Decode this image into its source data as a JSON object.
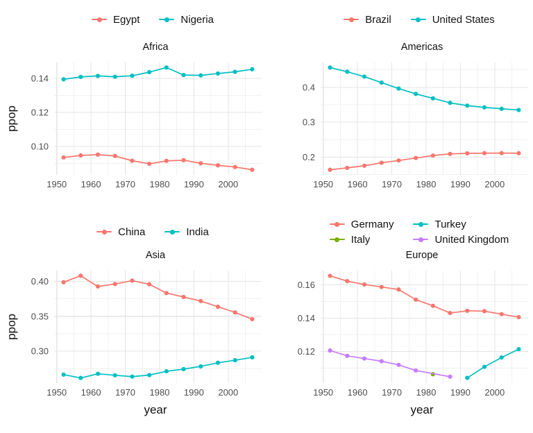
{
  "figure": {
    "background": "#ffffff",
    "grid_major_color": "#e4e4e4",
    "grid_minor_color": "#f0f0f0",
    "tick_text_color": "#4d4d4d",
    "text_color": "#111111"
  },
  "chart_data": [
    {
      "type": "line",
      "title": "Africa",
      "xlabel": "",
      "ylabel": "ppop",
      "legend_position": "top",
      "legend_rows": 1,
      "grid": "on",
      "xlim": [
        1949.25,
        2009.75
      ],
      "ylim": [
        0.0833,
        0.1493
      ],
      "x_ticks": {
        "values": [
          1950,
          1960,
          1970,
          1980,
          1990,
          2000
        ],
        "labels": [
          "1950",
          "1960",
          "1970",
          "1980",
          "1990",
          "2000"
        ]
      },
      "y_ticks": {
        "values": [
          0.1,
          0.12,
          0.14
        ],
        "labels": [
          "0.10",
          "0.12",
          "0.14"
        ]
      },
      "x_minor": [
        1955,
        1965,
        1975,
        1985,
        1995,
        2005
      ],
      "y_minor": [
        0.09,
        0.11,
        0.13
      ],
      "series": [
        {
          "name": "Egypt",
          "color": "#F8766D",
          "x": [
            1952,
            1957,
            1962,
            1967,
            1972,
            1977,
            1982,
            1987,
            1992,
            1997,
            2002,
            2007
          ],
          "values": [
            0.0935,
            0.0947,
            0.0952,
            0.0944,
            0.0916,
            0.0898,
            0.0915,
            0.0919,
            0.0901,
            0.0889,
            0.0879,
            0.0863
          ]
        },
        {
          "name": "Nigeria",
          "color": "#00BFC4",
          "x": [
            1952,
            1957,
            1962,
            1967,
            1972,
            1977,
            1982,
            1987,
            1992,
            1997,
            2002,
            2007
          ],
          "values": [
            0.1394,
            0.1408,
            0.1414,
            0.1409,
            0.1415,
            0.1436,
            0.1463,
            0.1419,
            0.1417,
            0.1428,
            0.1438,
            0.1453
          ]
        }
      ]
    },
    {
      "type": "line",
      "title": "Americas",
      "xlabel": "",
      "ylabel": "",
      "legend_position": "top",
      "legend_rows": 1,
      "grid": "on",
      "xlim": [
        1949.25,
        2009.75
      ],
      "ylim": [
        0.1494,
        0.4711
      ],
      "x_ticks": {
        "values": [
          1950,
          1960,
          1970,
          1980,
          1990,
          2000
        ],
        "labels": [
          "1950",
          "1960",
          "1970",
          "1980",
          "1990",
          "2000"
        ]
      },
      "y_ticks": {
        "values": [
          0.2,
          0.3,
          0.4
        ],
        "labels": [
          "0.2",
          "0.3",
          "0.4"
        ]
      },
      "x_minor": [
        1955,
        1965,
        1975,
        1985,
        1995,
        2005
      ],
      "y_minor": [
        0.15,
        0.25,
        0.35,
        0.45
      ],
      "series": [
        {
          "name": "Brazil",
          "color": "#F8766D",
          "x": [
            1952,
            1957,
            1962,
            1967,
            1972,
            1977,
            1982,
            1987,
            1992,
            1997,
            2002,
            2007
          ],
          "values": [
            0.164,
            0.1694,
            0.1755,
            0.184,
            0.1905,
            0.1977,
            0.2046,
            0.2094,
            0.211,
            0.2115,
            0.2117,
            0.2114
          ]
        },
        {
          "name": "United States",
          "color": "#00BFC4",
          "x": [
            1952,
            1957,
            1962,
            1967,
            1972,
            1977,
            1982,
            1987,
            1992,
            1997,
            2002,
            2007
          ],
          "values": [
            0.4565,
            0.4445,
            0.4305,
            0.4135,
            0.3965,
            0.381,
            0.3684,
            0.3556,
            0.3475,
            0.3425,
            0.3385,
            0.335
          ]
        }
      ]
    },
    {
      "type": "line",
      "title": "Asia",
      "xlabel": "year",
      "ylabel": "ppop",
      "legend_position": "top",
      "legend_rows": 1,
      "grid": "on",
      "xlim": [
        1949.25,
        2009.75
      ],
      "ylim": [
        0.2545,
        0.4153
      ],
      "x_ticks": {
        "values": [
          1950,
          1960,
          1970,
          1980,
          1990,
          2000
        ],
        "labels": [
          "1950",
          "1960",
          "1970",
          "1980",
          "1990",
          "2000"
        ]
      },
      "y_ticks": {
        "values": [
          0.3,
          0.35,
          0.4
        ],
        "labels": [
          "0.30",
          "0.35",
          "0.40"
        ]
      },
      "x_minor": [
        1955,
        1965,
        1975,
        1985,
        1995,
        2005
      ],
      "y_minor": [
        0.275,
        0.325,
        0.375
      ],
      "series": [
        {
          "name": "China",
          "color": "#F8766D",
          "x": [
            1952,
            1957,
            1962,
            1967,
            1972,
            1977,
            1982,
            1987,
            1992,
            1997,
            2002,
            2007
          ],
          "values": [
            0.3987,
            0.408,
            0.3926,
            0.3961,
            0.401,
            0.3958,
            0.3832,
            0.3776,
            0.3718,
            0.3636,
            0.3555,
            0.3459
          ]
        },
        {
          "name": "India",
          "color": "#00BFC4",
          "x": [
            1952,
            1957,
            1962,
            1967,
            1972,
            1977,
            1982,
            1987,
            1992,
            1997,
            2002,
            2007
          ],
          "values": [
            0.2666,
            0.2618,
            0.2677,
            0.2656,
            0.2637,
            0.2659,
            0.2713,
            0.2744,
            0.2783,
            0.2835,
            0.2871,
            0.2913
          ]
        }
      ]
    },
    {
      "type": "line",
      "title": "Europe",
      "xlabel": "year",
      "ylabel": "",
      "legend_position": "top",
      "legend_rows": 2,
      "grid": "on",
      "xlim": [
        1949.25,
        2009.75
      ],
      "ylim": [
        0.1011,
        0.1685
      ],
      "x_ticks": {
        "values": [
          1950,
          1960,
          1970,
          1980,
          1990,
          2000
        ],
        "labels": [
          "1950",
          "1960",
          "1970",
          "1980",
          "1990",
          "2000"
        ]
      },
      "y_ticks": {
        "values": [
          0.12,
          0.14,
          0.16
        ],
        "labels": [
          "0.12",
          "0.14",
          "0.16"
        ]
      },
      "x_minor": [
        1955,
        1965,
        1975,
        1985,
        1995,
        2005
      ],
      "y_minor": [
        0.11,
        0.13,
        0.15
      ],
      "series": [
        {
          "name": "Germany",
          "color": "#F8766D",
          "x": [
            1952,
            1957,
            1962,
            1967,
            1972,
            1977,
            1982,
            1987,
            1992,
            1997,
            2002,
            2007
          ],
          "values": [
            0.1654,
            0.1622,
            0.1602,
            0.1587,
            0.1572,
            0.1511,
            0.1474,
            0.1431,
            0.1444,
            0.1442,
            0.1424,
            0.1406
          ]
        },
        {
          "name": "Italy",
          "color": "#7CAE00",
          "x": [
            1982
          ],
          "values": [
            0.1064
          ]
        },
        {
          "name": "Turkey",
          "color": "#00BFC4",
          "x": [
            1992,
            1997,
            2002,
            2007
          ],
          "values": [
            0.1042,
            0.1108,
            0.1164,
            0.1214
          ]
        },
        {
          "name": "United Kingdom",
          "color": "#C77CFF",
          "x": [
            1952,
            1957,
            1962,
            1967,
            1972,
            1977,
            1987
          ],
          "values": [
            0.1206,
            0.1174,
            0.1158,
            0.1142,
            0.112,
            0.1086,
            0.1049
          ]
        }
      ]
    }
  ]
}
